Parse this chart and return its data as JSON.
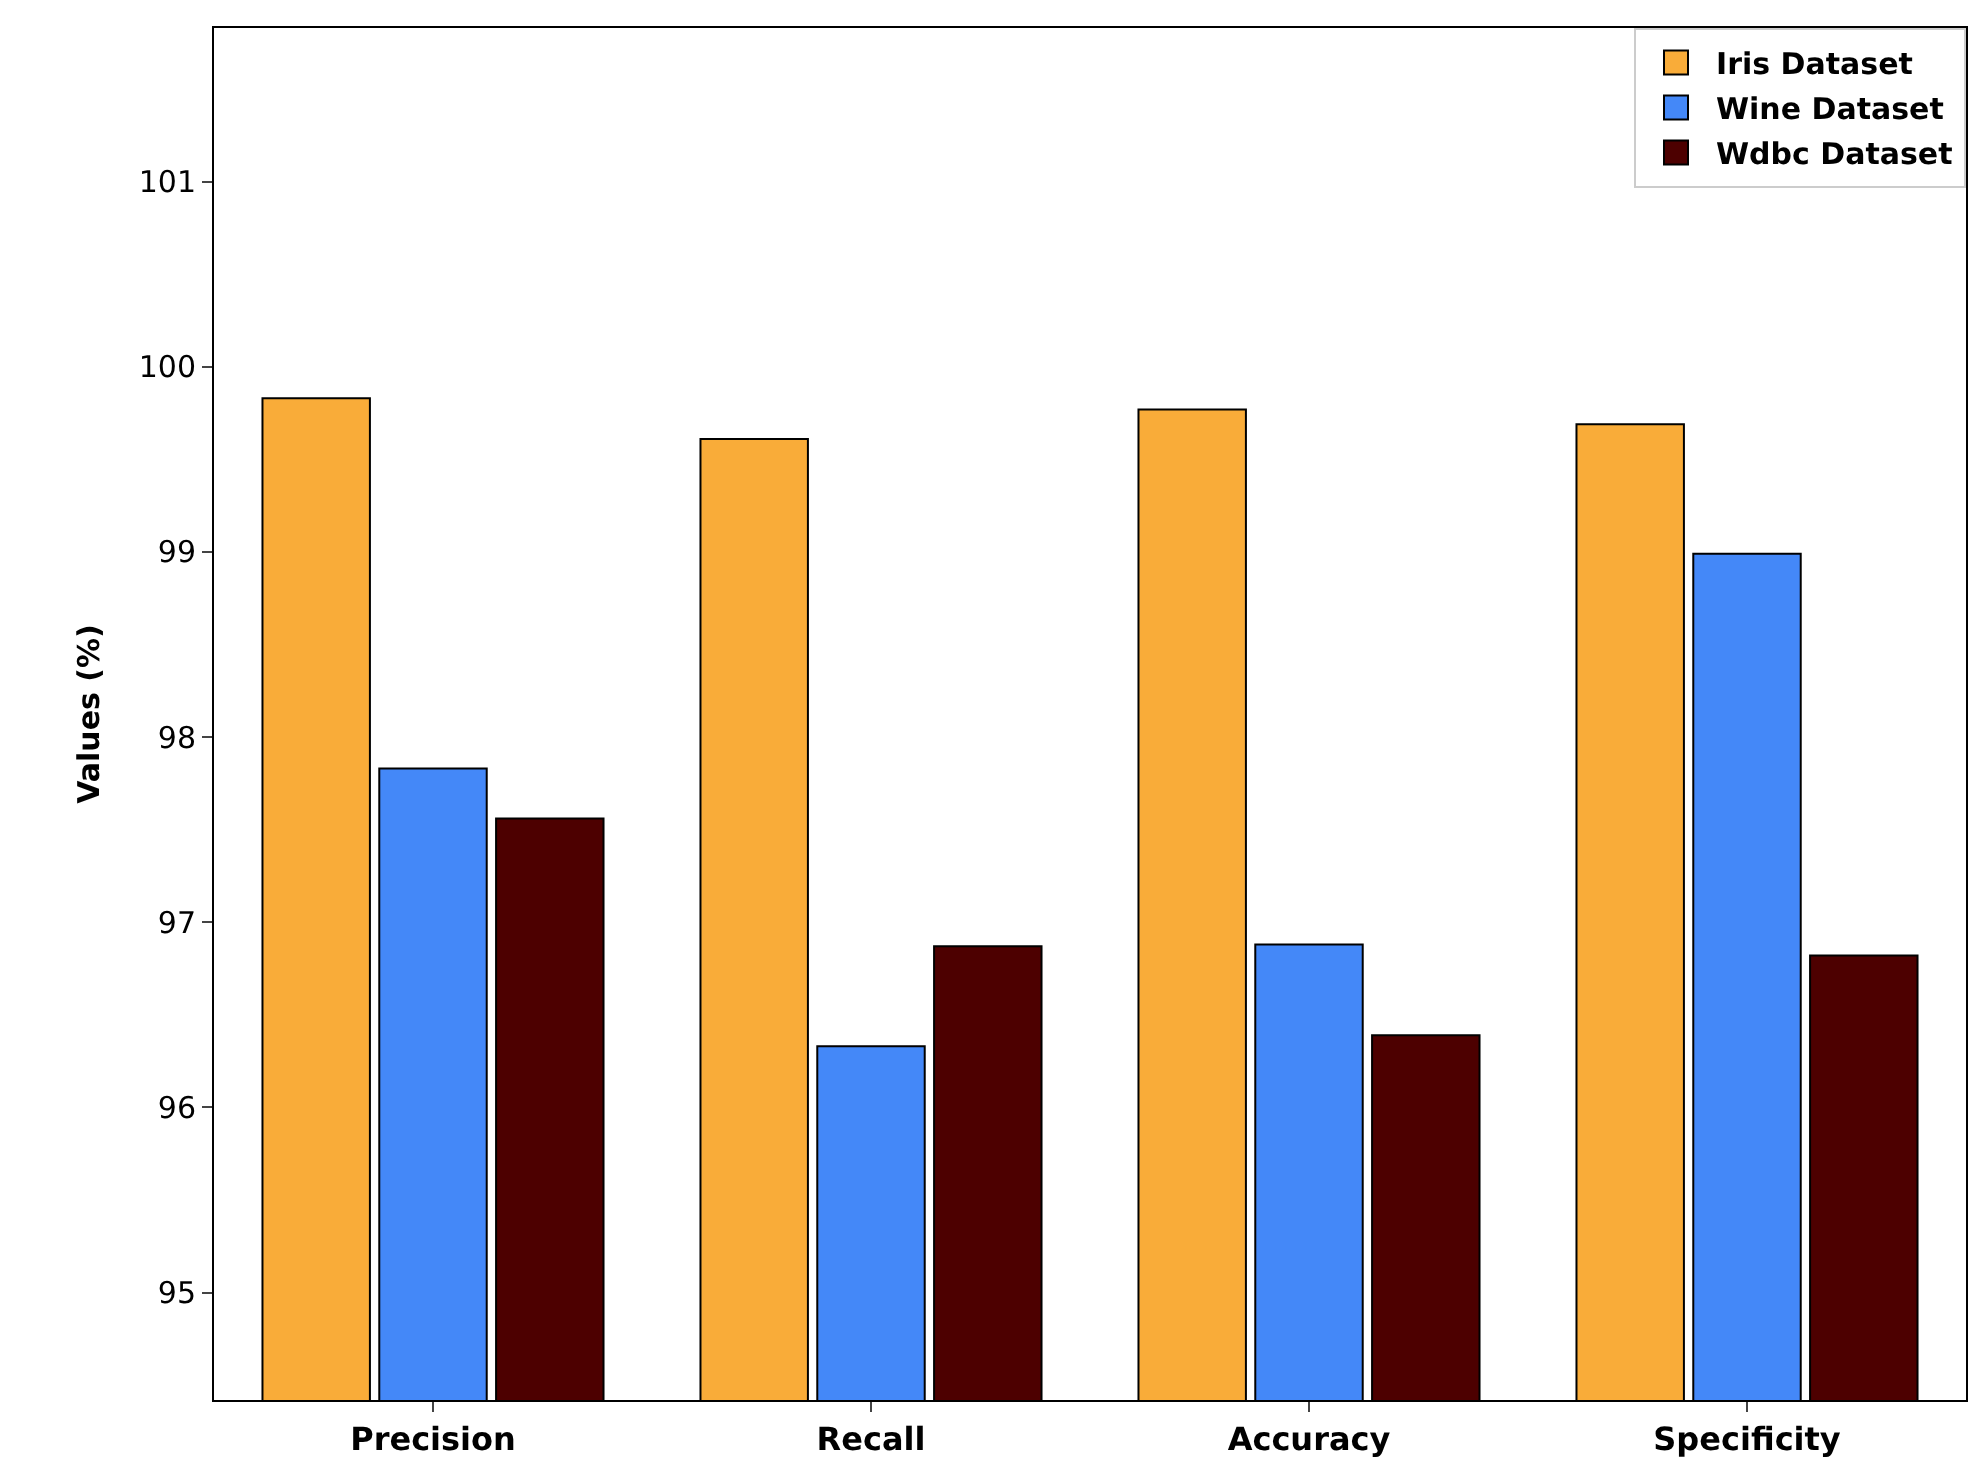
{
  "chart_data": {
    "type": "bar",
    "ylabel": "Values (%)",
    "categories": [
      "Precision",
      "Recall",
      "Accuracy",
      "Specificity"
    ],
    "series": [
      {
        "name": "Iris Dataset",
        "color": "#f9ac39",
        "values": [
          99.83,
          99.61,
          99.77,
          99.69
        ]
      },
      {
        "name": "Wine Dataset",
        "color": "#4488f8",
        "values": [
          97.83,
          96.33,
          96.88,
          98.99
        ]
      },
      {
        "name": "Wdbc Dataset",
        "color": "#4d0000",
        "values": [
          97.56,
          96.87,
          96.39,
          96.82
        ]
      }
    ],
    "ylim": [
      94.42,
      101.83
    ],
    "yticks": [
      95,
      96,
      97,
      98,
      99,
      100,
      101
    ],
    "legend": "top right"
  }
}
